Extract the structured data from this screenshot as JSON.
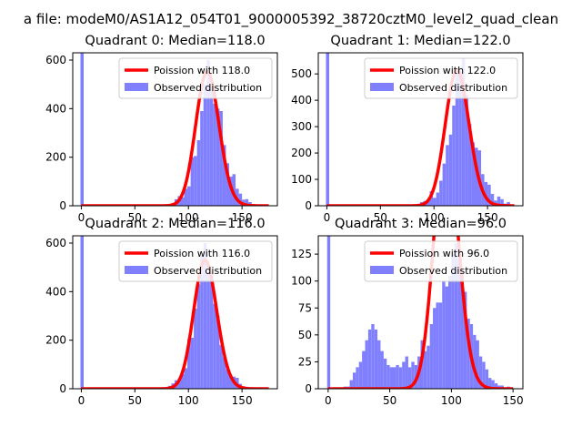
{
  "figure": {
    "suptitle": "a file: modeM0/AS1A12_054T01_9000005392_38720cztM0_level2_quad_clean"
  },
  "colors": {
    "histogram": "#8080ff",
    "poisson_line": "#ff0000",
    "axes": "#000000",
    "background": "#ffffff"
  },
  "chart_data": [
    {
      "type": "bar",
      "title": "Quadrant 0: Median=118.0",
      "median": 118,
      "xlim": [
        -8,
        183
      ],
      "ylim": [
        0,
        630
      ],
      "xticks": [
        0,
        50,
        100,
        150
      ],
      "yticks": [
        0,
        200,
        400,
        600
      ],
      "legend": {
        "placement": "top-right",
        "entries": [
          "Poission with 118.0",
          "Observed distribution"
        ]
      },
      "zero_bin_value": 700,
      "series": [
        {
          "name": "Observed distribution",
          "kind": "histogram",
          "bin_width": 3,
          "bins": [
            [
              75,
              3
            ],
            [
              78,
              5
            ],
            [
              81,
              7
            ],
            [
              84,
              10
            ],
            [
              87,
              27
            ],
            [
              90,
              40
            ],
            [
              93,
              35
            ],
            [
              96,
              70
            ],
            [
              99,
              80
            ],
            [
              102,
              200
            ],
            [
              105,
              205
            ],
            [
              108,
              270
            ],
            [
              111,
              390
            ],
            [
              114,
              500
            ],
            [
              117,
              600
            ],
            [
              120,
              490
            ],
            [
              123,
              420
            ],
            [
              126,
              400
            ],
            [
              129,
              390
            ],
            [
              132,
              250
            ],
            [
              135,
              175
            ],
            [
              138,
              120
            ],
            [
              141,
              130
            ],
            [
              144,
              70
            ],
            [
              147,
              50
            ],
            [
              150,
              25
            ],
            [
              153,
              27
            ],
            [
              156,
              15
            ],
            [
              159,
              7
            ],
            [
              162,
              3
            ],
            [
              165,
              1
            ]
          ]
        },
        {
          "name": "Poission with 118.0",
          "kind": "poisson",
          "lambda": 118
        }
      ]
    },
    {
      "type": "bar",
      "title": "Quadrant 1: Median=122.0",
      "median": 122,
      "xlim": [
        -8,
        183
      ],
      "ylim": [
        0,
        580
      ],
      "xticks": [
        0,
        50,
        100,
        150
      ],
      "yticks": [
        0,
        100,
        200,
        300,
        400,
        500
      ],
      "legend": {
        "placement": "top-right",
        "entries": [
          "Poission with 122.0",
          "Observed distribution"
        ]
      },
      "zero_bin_value": 650,
      "series": [
        {
          "name": "Observed distribution",
          "kind": "histogram",
          "bin_width": 3,
          "bins": [
            [
              78,
              2
            ],
            [
              81,
              4
            ],
            [
              84,
              6
            ],
            [
              87,
              14
            ],
            [
              90,
              18
            ],
            [
              93,
              22
            ],
            [
              96,
              55
            ],
            [
              99,
              30
            ],
            [
              102,
              50
            ],
            [
              105,
              95
            ],
            [
              108,
              160
            ],
            [
              111,
              230
            ],
            [
              114,
              270
            ],
            [
              117,
              380
            ],
            [
              120,
              500
            ],
            [
              123,
              510
            ],
            [
              126,
              560
            ],
            [
              129,
              420
            ],
            [
              132,
              310
            ],
            [
              135,
              240
            ],
            [
              138,
              220
            ],
            [
              141,
              210
            ],
            [
              144,
              120
            ],
            [
              147,
              90
            ],
            [
              150,
              80
            ],
            [
              153,
              45
            ],
            [
              156,
              20
            ],
            [
              159,
              35
            ],
            [
              162,
              25
            ],
            [
              165,
              8
            ],
            [
              168,
              14
            ],
            [
              171,
              3
            ]
          ]
        },
        {
          "name": "Poission with 122.0",
          "kind": "poisson",
          "lambda": 122
        }
      ]
    },
    {
      "type": "bar",
      "title": "Quadrant 2: Median=116.0",
      "median": 116,
      "xlim": [
        -8,
        183
      ],
      "ylim": [
        0,
        630
      ],
      "xticks": [
        0,
        50,
        100,
        150
      ],
      "yticks": [
        0,
        200,
        400,
        600
      ],
      "legend": {
        "placement": "top-right",
        "entries": [
          "Poission with 116.0",
          "Observed distribution"
        ]
      },
      "zero_bin_value": 700,
      "series": [
        {
          "name": "Observed distribution",
          "kind": "histogram",
          "bin_width": 3,
          "bins": [
            [
              72,
              2
            ],
            [
              75,
              3
            ],
            [
              78,
              5
            ],
            [
              81,
              12
            ],
            [
              84,
              22
            ],
            [
              87,
              35
            ],
            [
              90,
              42
            ],
            [
              93,
              60
            ],
            [
              96,
              85
            ],
            [
              99,
              205
            ],
            [
              102,
              210
            ],
            [
              105,
              330
            ],
            [
              108,
              430
            ],
            [
              111,
              550
            ],
            [
              114,
              600
            ],
            [
              117,
              480
            ],
            [
              120,
              470
            ],
            [
              123,
              350
            ],
            [
              126,
              300
            ],
            [
              129,
              180
            ],
            [
              132,
              130
            ],
            [
              135,
              80
            ],
            [
              138,
              55
            ],
            [
              141,
              50
            ],
            [
              144,
              45
            ],
            [
              147,
              20
            ],
            [
              150,
              10
            ],
            [
              153,
              5
            ],
            [
              156,
              2
            ]
          ]
        },
        {
          "name": "Poission with 116.0",
          "kind": "poisson",
          "lambda": 116
        }
      ]
    },
    {
      "type": "bar",
      "title": "Quadrant 3: Median=96.0",
      "median": 96,
      "xlim": [
        -8,
        158
      ],
      "ylim": [
        0,
        142
      ],
      "xticks": [
        0,
        50,
        100,
        150
      ],
      "yticks": [
        0,
        25,
        50,
        75,
        100,
        125
      ],
      "legend": {
        "placement": "top-right",
        "entries": [
          "Poission with 96.0",
          "Observed distribution"
        ]
      },
      "zero_bin_value": 160,
      "series": [
        {
          "name": "Observed distribution",
          "kind": "histogram",
          "bin_width": 2.5,
          "bins": [
            [
              12.5,
              2
            ],
            [
              15,
              2
            ],
            [
              17.5,
              8
            ],
            [
              20,
              15
            ],
            [
              22.5,
              20
            ],
            [
              25,
              25
            ],
            [
              27.5,
              35
            ],
            [
              30,
              45
            ],
            [
              32.5,
              55
            ],
            [
              35,
              60
            ],
            [
              37.5,
              55
            ],
            [
              40,
              45
            ],
            [
              42.5,
              35
            ],
            [
              45,
              28
            ],
            [
              47.5,
              22
            ],
            [
              50,
              20
            ],
            [
              52.5,
              20
            ],
            [
              55,
              22
            ],
            [
              57.5,
              20
            ],
            [
              60,
              25
            ],
            [
              62.5,
              30
            ],
            [
              65,
              20
            ],
            [
              67.5,
              25
            ],
            [
              70,
              22
            ],
            [
              72.5,
              30
            ],
            [
              75,
              45
            ],
            [
              77.5,
              35
            ],
            [
              80,
              40
            ],
            [
              82.5,
              60
            ],
            [
              85,
              75
            ],
            [
              87.5,
              80
            ],
            [
              90,
              80
            ],
            [
              92.5,
              100
            ],
            [
              95,
              95
            ],
            [
              97.5,
              105
            ],
            [
              100,
              125
            ],
            [
              102.5,
              135
            ],
            [
              105,
              120
            ],
            [
              107.5,
              110
            ],
            [
              110,
              90
            ],
            [
              112.5,
              65
            ],
            [
              115,
              60
            ],
            [
              117.5,
              50
            ],
            [
              120,
              45
            ],
            [
              122.5,
              30
            ],
            [
              125,
              25
            ],
            [
              127.5,
              18
            ],
            [
              130,
              10
            ],
            [
              132.5,
              8
            ],
            [
              135,
              5
            ],
            [
              137.5,
              3
            ],
            [
              140,
              3
            ],
            [
              142.5,
              1
            ],
            [
              145,
              2
            ]
          ]
        },
        {
          "name": "Poission with 96.0",
          "kind": "poisson",
          "lambda": 96
        }
      ]
    }
  ]
}
